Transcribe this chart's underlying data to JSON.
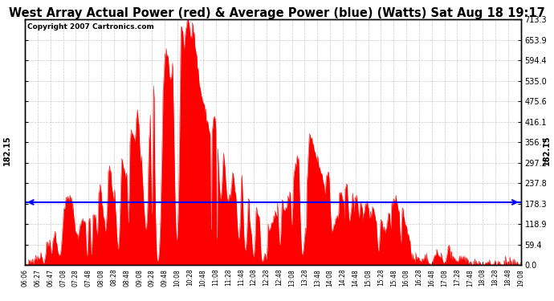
{
  "title": "West Array Actual Power (red) & Average Power (blue) (Watts) Sat Aug 18 19:17",
  "copyright": "Copyright 2007 Cartronics.com",
  "average_power": 182.15,
  "y_max": 713.3,
  "y_min": 0.0,
  "y_ticks": [
    0.0,
    59.4,
    118.9,
    178.3,
    237.8,
    297.2,
    356.7,
    416.1,
    475.6,
    535.0,
    594.4,
    653.9,
    713.3
  ],
  "x_labels": [
    "06:06",
    "06:27",
    "06:47",
    "07:08",
    "07:28",
    "07:48",
    "08:08",
    "08:28",
    "08:48",
    "09:08",
    "09:28",
    "09:48",
    "10:08",
    "10:28",
    "10:48",
    "11:08",
    "11:28",
    "11:48",
    "12:08",
    "12:28",
    "12:48",
    "13:08",
    "13:28",
    "13:48",
    "14:08",
    "14:28",
    "14:48",
    "15:08",
    "15:28",
    "15:48",
    "16:08",
    "16:28",
    "16:48",
    "17:08",
    "17:28",
    "17:48",
    "18:08",
    "18:28",
    "18:48",
    "19:08"
  ],
  "fill_color": "#FF0000",
  "line_color": "#0000FF",
  "bg_color": "#FFFFFF",
  "grid_color": "#BBBBBB",
  "title_fontsize": 10.5,
  "copyright_fontsize": 6.5,
  "avg_label_fontsize": 7
}
